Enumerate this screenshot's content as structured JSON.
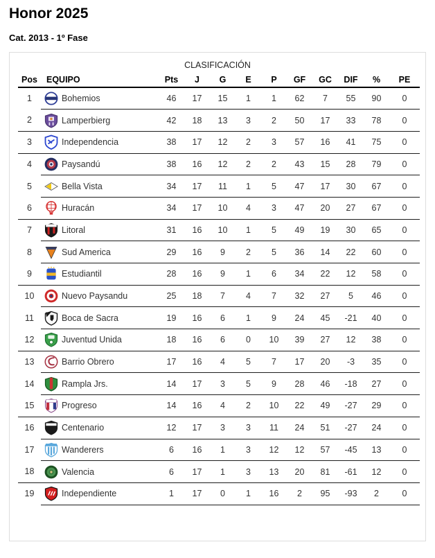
{
  "page": {
    "title": "Honor 2025",
    "subtitle": "Cat. 2013 - 1º Fase"
  },
  "table": {
    "caption": "CLASIFICACIÓN",
    "columns": [
      "Pos",
      "EQUIPO",
      "Pts",
      "J",
      "G",
      "E",
      "P",
      "GF",
      "GC",
      "DIF",
      "%",
      "PE"
    ],
    "rows": [
      {
        "pos": "1",
        "team": "Bohemios",
        "cells": [
          "46",
          "17",
          "15",
          "1",
          "1",
          "62",
          "7",
          "55",
          "90",
          "0"
        ],
        "group_end": false,
        "logo": {
          "icon": "bohemios-crest-icon",
          "shape": "circle-band",
          "colors": [
            "#ffffff",
            "#2e3e96",
            "#283678"
          ]
        }
      },
      {
        "pos": "2",
        "team": "Lamperbierg",
        "cells": [
          "42",
          "18",
          "13",
          "3",
          "2",
          "50",
          "17",
          "33",
          "78",
          "0"
        ],
        "group_end": true,
        "logo": {
          "icon": "lamperbierg-crest-icon",
          "shape": "shield-crest",
          "colors": [
            "#6b4d9d",
            "#4a356f",
            "#ece4f4",
            "#d8883c"
          ]
        }
      },
      {
        "pos": "3",
        "team": "Independencia",
        "cells": [
          "38",
          "17",
          "12",
          "2",
          "3",
          "57",
          "16",
          "41",
          "75",
          "0"
        ],
        "group_end": true,
        "logo": {
          "icon": "independencia-crest-icon",
          "shape": "shield-letters",
          "colors": [
            "#ffffff",
            "#2b46cf"
          ]
        }
      },
      {
        "pos": "4",
        "team": "Paysandú",
        "cells": [
          "38",
          "16",
          "12",
          "2",
          "2",
          "43",
          "15",
          "28",
          "79",
          "0"
        ],
        "group_end": false,
        "logo": {
          "icon": "paysandu-crest-icon",
          "shape": "circle-rings",
          "colors": [
            "#232e62",
            "#b43a4a",
            "#f0ecf4",
            "#232e62"
          ]
        }
      },
      {
        "pos": "5",
        "team": "Bella Vista",
        "cells": [
          "34",
          "17",
          "11",
          "1",
          "5",
          "47",
          "17",
          "30",
          "67",
          "0"
        ],
        "group_end": false,
        "logo": {
          "icon": "bella-vista-crest-icon",
          "shape": "diamond",
          "colors": [
            "#f2c910",
            "#ffffff",
            "#666666"
          ]
        }
      },
      {
        "pos": "6",
        "team": "Huracán",
        "cells": [
          "34",
          "17",
          "10",
          "4",
          "3",
          "47",
          "20",
          "27",
          "67",
          "0"
        ],
        "group_end": true,
        "logo": {
          "icon": "huracan-crest-icon",
          "shape": "balloon",
          "colors": [
            "#d63434",
            "#ffffff"
          ]
        }
      },
      {
        "pos": "7",
        "team": "Litoral",
        "cells": [
          "31",
          "16",
          "10",
          "1",
          "5",
          "49",
          "19",
          "30",
          "65",
          "0"
        ],
        "group_end": false,
        "logo": {
          "icon": "litoral-crest-icon",
          "shape": "shield-stripes-chief",
          "colors": [
            "#1a1a1a",
            "#cc2222",
            "#f5f5f5"
          ]
        }
      },
      {
        "pos": "8",
        "team": "Sud America",
        "cells": [
          "29",
          "16",
          "9",
          "2",
          "5",
          "36",
          "14",
          "22",
          "60",
          "0"
        ],
        "group_end": false,
        "logo": {
          "icon": "sud-america-crest-icon",
          "shape": "triangle-band",
          "colors": [
            "#e8821e",
            "#3a3f63"
          ]
        }
      },
      {
        "pos": "9",
        "team": "Estudiantil",
        "cells": [
          "28",
          "16",
          "9",
          "1",
          "6",
          "34",
          "22",
          "12",
          "58",
          "0"
        ],
        "group_end": true,
        "logo": {
          "icon": "estudiantil-crest-icon",
          "shape": "square-band",
          "colors": [
            "#2a52c8",
            "#f0b828"
          ]
        }
      },
      {
        "pos": "10",
        "team": "Nuevo Paysandu",
        "cells": [
          "25",
          "18",
          "7",
          "4",
          "7",
          "32",
          "27",
          "5",
          "46",
          "0"
        ],
        "group_end": false,
        "logo": {
          "icon": "nuevo-paysandu-crest-icon",
          "shape": "circle-rings",
          "colors": [
            "#d02a2a",
            "#ffffff",
            "#d02a2a",
            "#2a3a7a"
          ]
        }
      },
      {
        "pos": "11",
        "team": "Boca de Sacra",
        "cells": [
          "19",
          "16",
          "6",
          "1",
          "9",
          "24",
          "45",
          "-21",
          "40",
          "0"
        ],
        "group_end": false,
        "logo": {
          "icon": "boca-de-sacra-crest-icon",
          "shape": "shield-corner",
          "colors": [
            "#fafafa",
            "#1a1a1a"
          ]
        }
      },
      {
        "pos": "12",
        "team": "Juventud Unida",
        "cells": [
          "18",
          "16",
          "6",
          "0",
          "10",
          "39",
          "27",
          "12",
          "38",
          "0"
        ],
        "group_end": true,
        "logo": {
          "icon": "juventud-unida-crest-icon",
          "shape": "shield-crest2",
          "colors": [
            "#3aa04a",
            "#1d7030",
            "#e9f4ea"
          ]
        }
      },
      {
        "pos": "13",
        "team": "Barrio Obrero",
        "cells": [
          "17",
          "16",
          "4",
          "5",
          "7",
          "17",
          "20",
          "-3",
          "35",
          "0"
        ],
        "group_end": false,
        "logo": {
          "icon": "barrio-obrero-crest-icon",
          "shape": "circle-swirl",
          "colors": [
            "#ffffff",
            "#a83848"
          ]
        }
      },
      {
        "pos": "14",
        "team": "Rampla Jrs.",
        "cells": [
          "14",
          "17",
          "3",
          "5",
          "9",
          "28",
          "46",
          "-18",
          "27",
          "0"
        ],
        "group_end": false,
        "logo": {
          "icon": "rampla-jrs-crest-icon",
          "shape": "shield-vstripe",
          "colors": [
            "#2f8f3f",
            "#14581f",
            "#cc3333"
          ]
        }
      },
      {
        "pos": "15",
        "team": "Progreso",
        "cells": [
          "14",
          "16",
          "4",
          "2",
          "10",
          "22",
          "49",
          "-27",
          "29",
          "0"
        ],
        "group_end": true,
        "logo": {
          "icon": "progreso-crest-icon",
          "shape": "shield-tristripe",
          "colors": [
            "#ffffff",
            "#8a4a8a",
            "#c03040",
            "#303c8c"
          ]
        }
      },
      {
        "pos": "16",
        "team": "Centenario",
        "cells": [
          "12",
          "17",
          "3",
          "3",
          "11",
          "24",
          "51",
          "-27",
          "24",
          "0"
        ],
        "group_end": false,
        "logo": {
          "icon": "centenario-crest-icon",
          "shape": "shield-band-dark",
          "colors": [
            "#1a1a1a",
            "#ffffff"
          ]
        }
      },
      {
        "pos": "17",
        "team": "Wanderers",
        "cells": [
          "6",
          "16",
          "1",
          "3",
          "12",
          "12",
          "57",
          "-45",
          "13",
          "0"
        ],
        "group_end": false,
        "logo": {
          "icon": "wanderers-crest-icon",
          "shape": "shield-vstripes-banner",
          "colors": [
            "#ffffff",
            "#5aa8dc"
          ]
        }
      },
      {
        "pos": "18",
        "team": "Valencia",
        "cells": [
          "6",
          "17",
          "1",
          "3",
          "13",
          "20",
          "81",
          "-61",
          "12",
          "0"
        ],
        "group_end": true,
        "logo": {
          "icon": "valencia-crest-icon",
          "shape": "circle-rings",
          "colors": [
            "#1d5222",
            "#4a9350",
            "#35773a",
            "#d0c080"
          ]
        }
      },
      {
        "pos": "19",
        "team": "Independiente",
        "cells": [
          "1",
          "17",
          "0",
          "1",
          "16",
          "2",
          "95",
          "-93",
          "2",
          "0"
        ],
        "group_end": false,
        "logo": {
          "icon": "independiente-crest-icon",
          "shape": "shield-marks",
          "colors": [
            "#d41f1f",
            "#111111",
            "#ffffff"
          ]
        }
      }
    ]
  },
  "colors": {
    "row_line": "#1c1c1c",
    "header_line": "#000000",
    "panel_border": "#dddddd",
    "cell_text": "#333333"
  }
}
